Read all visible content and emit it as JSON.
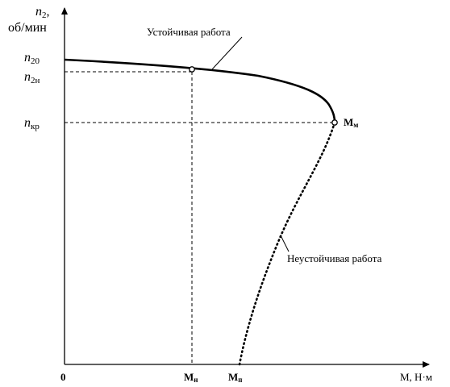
{
  "labels": {
    "y_axis_symbol": "n",
    "y_axis_sub": "2",
    "y_axis_sep": ",",
    "y_axis_unit": "об/мин",
    "n20_symbol": "n",
    "n20_sub": "20",
    "n2n_symbol": "n",
    "n2n_sub": "2н",
    "nkr_symbol": "n",
    "nkr_sub": "кр",
    "origin": "0",
    "mn_main": "M",
    "mn_sub": "н",
    "mp_main": "M",
    "mp_sub": "п",
    "mm_main": "M",
    "mm_sub": "м",
    "x_axis_label": "M, Н·м",
    "stable_label": "Устойчивая работа",
    "unstable_label": "Неустойчивая работа"
  },
  "curve": {
    "stable_style": "solid",
    "unstable_style": "dotted",
    "markers": [
      "nominal point",
      "critical point"
    ]
  },
  "colors": {
    "ink": "#000000",
    "background": "#ffffff"
  }
}
